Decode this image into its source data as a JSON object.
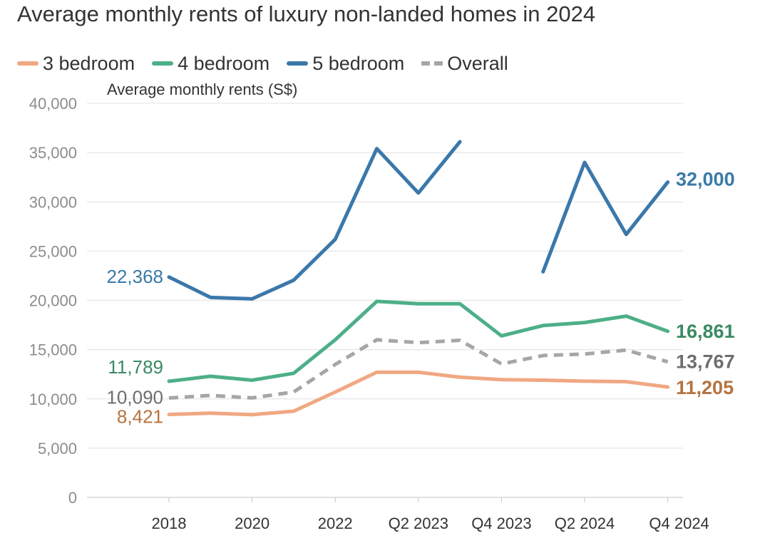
{
  "chart_data": {
    "type": "line",
    "title": "Average monthly rents of luxury non-landed homes in 2024",
    "ylabel": "Average monthly rents (S$)",
    "xlabel": "",
    "ylim": [
      0,
      40000
    ],
    "yticks": [
      "0",
      "5,000",
      "10,000",
      "15,000",
      "20,000",
      "25,000",
      "30,000",
      "35,000",
      "40,000"
    ],
    "ytick_values": [
      0,
      5000,
      10000,
      15000,
      20000,
      25000,
      30000,
      35000,
      40000
    ],
    "x": [
      "2018",
      "2019",
      "2020",
      "2021",
      "2022",
      "2023 Q1",
      "Q2 2023",
      "2023 Q3",
      "Q4 2023",
      "2024 Q1",
      "Q2 2024",
      "2024 Q3",
      "Q4 2024"
    ],
    "xtick_labels": [
      "2018",
      "2020",
      "2022",
      "Q2 2023",
      "Q4 2023",
      "Q2 2024",
      "Q4 2024"
    ],
    "xtick_indices": [
      0,
      2,
      4,
      6,
      8,
      10,
      12
    ],
    "grid": "horizontal",
    "legend_position": "top-left",
    "series": [
      {
        "name": "3 bedroom",
        "color": "#f0a882",
        "label_color": "#b57340",
        "style": "solid",
        "values": [
          8421,
          8550,
          8400,
          8750,
          10700,
          12700,
          12700,
          12200,
          11950,
          11900,
          11800,
          11750,
          11205
        ],
        "start_label": "8,421",
        "end_label": "11,205"
      },
      {
        "name": "4 bedroom",
        "color": "#4daf88",
        "label_color": "#3a8a63",
        "style": "solid",
        "values": [
          11789,
          12300,
          11900,
          12600,
          16000,
          19900,
          19650,
          19650,
          16400,
          17450,
          17750,
          18400,
          16861
        ],
        "start_label": "11,789",
        "end_label": "16,861"
      },
      {
        "name": "5 bedroom",
        "color": "#3b78aa",
        "label_color": "#3a7aa6",
        "style": "solid",
        "values": [
          22368,
          20300,
          20150,
          22050,
          26200,
          35400,
          30900,
          36100,
          null,
          22900,
          34000,
          26700,
          32000
        ],
        "start_label": "22,368",
        "end_label": "32,000"
      },
      {
        "name": "Overall",
        "color": "#a6a6a6",
        "label_color": "#6e6e6e",
        "style": "dashed",
        "values": [
          10090,
          10350,
          10100,
          10700,
          13500,
          16000,
          15700,
          15950,
          13550,
          14400,
          14550,
          14950,
          13767
        ],
        "start_label": "10,090",
        "end_label": "13,767"
      }
    ]
  }
}
